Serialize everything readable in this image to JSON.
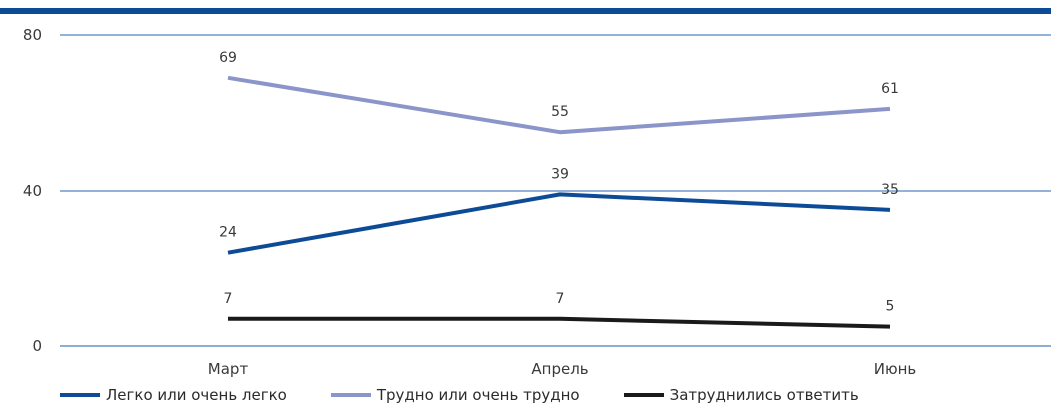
{
  "colors": {
    "top_bar": "#0d4b97",
    "grid": "#2a66b0",
    "axis": "#1f5aa6"
  },
  "chart_data": {
    "type": "line",
    "categories": [
      "Март",
      "Апрель",
      "Июнь"
    ],
    "ylim": [
      0,
      80
    ],
    "yticks": [
      "0",
      "40",
      "80"
    ],
    "grid": true,
    "legend_position": "bottom",
    "series": [
      {
        "name": "Легко или очень легко",
        "values": [
          24,
          39,
          35
        ],
        "labels": [
          "24",
          "39",
          "35"
        ],
        "color": "#0d4b97"
      },
      {
        "name": "Трудно или очень трудно",
        "values": [
          69,
          55,
          61
        ],
        "labels": [
          "69",
          "55",
          "61"
        ],
        "color": "#8b95c9"
      },
      {
        "name": "Затруднились ответить",
        "values": [
          7,
          7,
          5
        ],
        "labels": [
          "7",
          "7",
          "5"
        ],
        "color": "#1a1a1a"
      }
    ]
  }
}
